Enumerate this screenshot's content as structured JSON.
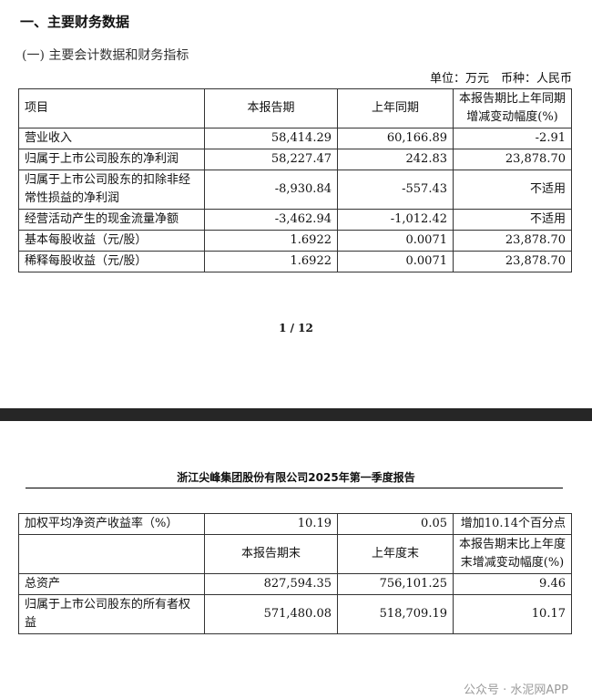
{
  "section_title": "一、主要财务数据",
  "subsection_title": "(一) 主要会计数据和财务指标",
  "unit_note": "单位：万元　币种：人民币",
  "table1": {
    "headers": [
      "项目",
      "本报告期",
      "上年同期",
      "本报告期比上年同期增减变动幅度(%)"
    ],
    "rows": [
      [
        "营业收入",
        "58,414.29",
        "60,166.89",
        "-2.91"
      ],
      [
        "归属于上市公司股东的净利润",
        "58,227.47",
        "242.83",
        "23,878.70"
      ],
      [
        "归属于上市公司股东的扣除非经常性损益的净利润",
        "-8,930.84",
        "-557.43",
        "不适用"
      ],
      [
        "经营活动产生的现金流量净额",
        "-3,462.94",
        "-1,012.42",
        "不适用"
      ],
      [
        "基本每股收益（元/股）",
        "1.6922",
        "0.0071",
        "23,878.70"
      ],
      [
        "稀释每股收益（元/股）",
        "1.6922",
        "0.0071",
        "23,878.70"
      ]
    ]
  },
  "page_indicator": "1 / 12",
  "report_title": "浙江尖峰集团股份有限公司2025年第一季度报告",
  "table2": {
    "row_roe": [
      "加权平均净资产收益率（%）",
      "10.19",
      "0.05",
      "增加10.14个百分点"
    ],
    "headers": [
      "",
      "本报告期末",
      "上年度末",
      "本报告期末比上年度末增减变动幅度(%)"
    ],
    "rows": [
      [
        "总资产",
        "827,594.35",
        "756,101.25",
        "9.46"
      ],
      [
        "归属于上市公司股东的所有者权益",
        "571,480.08",
        "518,709.19",
        "10.17"
      ]
    ]
  },
  "watermark": "公众号 · 水泥网APP"
}
